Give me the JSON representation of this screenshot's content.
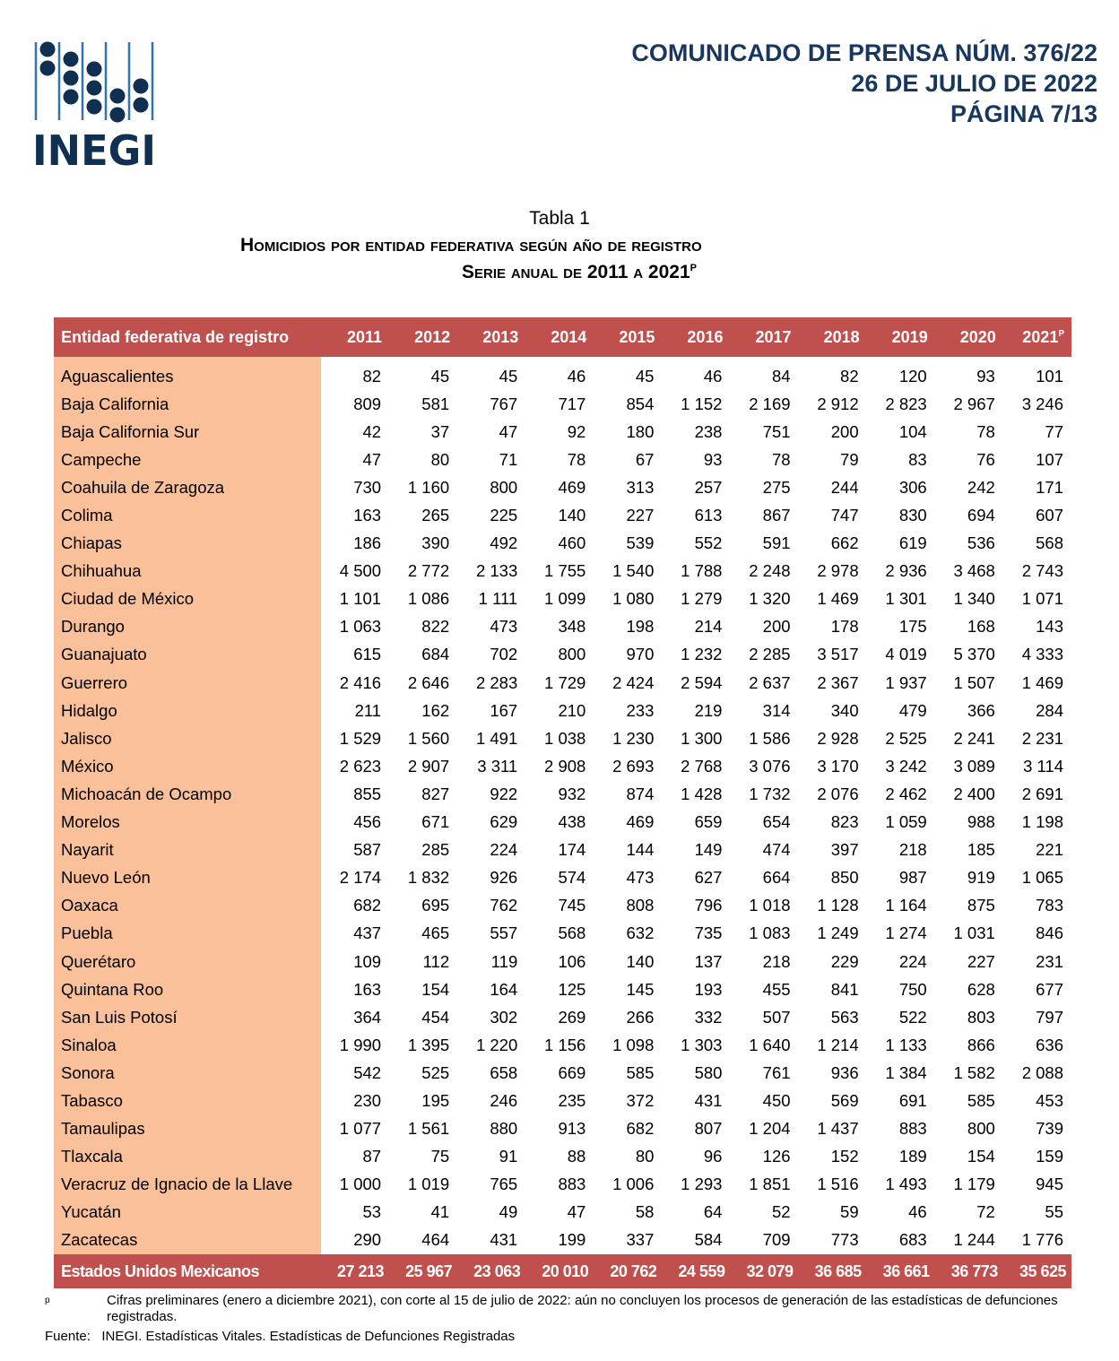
{
  "logo_text": "INEGI",
  "press": {
    "line1": "COMUNICADO DE PRENSA NÚM. 376/22",
    "line2": "26 DE JULIO DE 2022",
    "line3": "PÁGINA 7/13"
  },
  "caption": "Tabla 1",
  "title": "Homicidios por entidad federativa según año de registro",
  "subtitle": "Serie anual de 2011 a 2021",
  "subtitle_mark": "P",
  "table": {
    "header_name": "Entidad federativa de registro",
    "years": [
      "2011",
      "2012",
      "2013",
      "2014",
      "2015",
      "2016",
      "2017",
      "2018",
      "2019",
      "2020",
      "2021"
    ],
    "last_year_mark": "P",
    "rows": [
      {
        "name": "Aguascalientes",
        "values": [
          "82",
          "45",
          "45",
          "46",
          "45",
          "46",
          "84",
          "82",
          "120",
          "93",
          "101"
        ]
      },
      {
        "name": "Baja California",
        "values": [
          "809",
          "581",
          "767",
          "717",
          "854",
          "1 152",
          "2 169",
          "2 912",
          "2 823",
          "2 967",
          "3 246"
        ]
      },
      {
        "name": "Baja California Sur",
        "values": [
          "42",
          "37",
          "47",
          "92",
          "180",
          "238",
          "751",
          "200",
          "104",
          "78",
          "77"
        ]
      },
      {
        "name": "Campeche",
        "values": [
          "47",
          "80",
          "71",
          "78",
          "67",
          "93",
          "78",
          "79",
          "83",
          "76",
          "107"
        ]
      },
      {
        "name": "Coahuila de Zaragoza",
        "values": [
          "730",
          "1 160",
          "800",
          "469",
          "313",
          "257",
          "275",
          "244",
          "306",
          "242",
          "171"
        ]
      },
      {
        "name": "Colima",
        "values": [
          "163",
          "265",
          "225",
          "140",
          "227",
          "613",
          "867",
          "747",
          "830",
          "694",
          "607"
        ]
      },
      {
        "name": "Chiapas",
        "values": [
          "186",
          "390",
          "492",
          "460",
          "539",
          "552",
          "591",
          "662",
          "619",
          "536",
          "568"
        ]
      },
      {
        "name": "Chihuahua",
        "values": [
          "4 500",
          "2 772",
          "2 133",
          "1 755",
          "1 540",
          "1 788",
          "2 248",
          "2 978",
          "2 936",
          "3 468",
          "2 743"
        ]
      },
      {
        "name": "Ciudad de México",
        "values": [
          "1 101",
          "1 086",
          "1 111",
          "1 099",
          "1 080",
          "1 279",
          "1 320",
          "1 469",
          "1 301",
          "1 340",
          "1 071"
        ]
      },
      {
        "name": "Durango",
        "values": [
          "1 063",
          "822",
          "473",
          "348",
          "198",
          "214",
          "200",
          "178",
          "175",
          "168",
          "143"
        ]
      },
      {
        "name": "Guanajuato",
        "values": [
          "615",
          "684",
          "702",
          "800",
          "970",
          "1 232",
          "2 285",
          "3 517",
          "4 019",
          "5 370",
          "4 333"
        ]
      },
      {
        "name": "Guerrero",
        "values": [
          "2 416",
          "2 646",
          "2 283",
          "1 729",
          "2 424",
          "2 594",
          "2 637",
          "2 367",
          "1 937",
          "1 507",
          "1 469"
        ]
      },
      {
        "name": "Hidalgo",
        "values": [
          "211",
          "162",
          "167",
          "210",
          "233",
          "219",
          "314",
          "340",
          "479",
          "366",
          "284"
        ]
      },
      {
        "name": "Jalisco",
        "values": [
          "1 529",
          "1 560",
          "1 491",
          "1 038",
          "1 230",
          "1 300",
          "1 586",
          "2 928",
          "2 525",
          "2 241",
          "2 231"
        ]
      },
      {
        "name": "México",
        "values": [
          "2 623",
          "2 907",
          "3 311",
          "2 908",
          "2 693",
          "2 768",
          "3 076",
          "3 170",
          "3 242",
          "3 089",
          "3 114"
        ]
      },
      {
        "name": "Michoacán de Ocampo",
        "values": [
          "855",
          "827",
          "922",
          "932",
          "874",
          "1 428",
          "1 732",
          "2 076",
          "2 462",
          "2 400",
          "2 691"
        ]
      },
      {
        "name": "Morelos",
        "values": [
          "456",
          "671",
          "629",
          "438",
          "469",
          "659",
          "654",
          "823",
          "1 059",
          "988",
          "1 198"
        ]
      },
      {
        "name": "Nayarit",
        "values": [
          "587",
          "285",
          "224",
          "174",
          "144",
          "149",
          "474",
          "397",
          "218",
          "185",
          "221"
        ]
      },
      {
        "name": "Nuevo León",
        "values": [
          "2 174",
          "1 832",
          "926",
          "574",
          "473",
          "627",
          "664",
          "850",
          "987",
          "919",
          "1 065"
        ]
      },
      {
        "name": "Oaxaca",
        "values": [
          "682",
          "695",
          "762",
          "745",
          "808",
          "796",
          "1 018",
          "1 128",
          "1 164",
          "875",
          "783"
        ]
      },
      {
        "name": "Puebla",
        "values": [
          "437",
          "465",
          "557",
          "568",
          "632",
          "735",
          "1 083",
          "1 249",
          "1 274",
          "1 031",
          "846"
        ]
      },
      {
        "name": "Querétaro",
        "values": [
          "109",
          "112",
          "119",
          "106",
          "140",
          "137",
          "218",
          "229",
          "224",
          "227",
          "231"
        ]
      },
      {
        "name": "Quintana Roo",
        "values": [
          "163",
          "154",
          "164",
          "125",
          "145",
          "193",
          "455",
          "841",
          "750",
          "628",
          "677"
        ]
      },
      {
        "name": "San Luis Potosí",
        "values": [
          "364",
          "454",
          "302",
          "269",
          "266",
          "332",
          "507",
          "563",
          "522",
          "803",
          "797"
        ]
      },
      {
        "name": "Sinaloa",
        "values": [
          "1 990",
          "1 395",
          "1 220",
          "1 156",
          "1 098",
          "1 303",
          "1 640",
          "1 214",
          "1 133",
          "866",
          "636"
        ]
      },
      {
        "name": "Sonora",
        "values": [
          "542",
          "525",
          "658",
          "669",
          "585",
          "580",
          "761",
          "936",
          "1 384",
          "1 582",
          "2 088"
        ]
      },
      {
        "name": "Tabasco",
        "values": [
          "230",
          "195",
          "246",
          "235",
          "372",
          "431",
          "450",
          "569",
          "691",
          "585",
          "453"
        ]
      },
      {
        "name": "Tamaulipas",
        "values": [
          "1 077",
          "1 561",
          "880",
          "913",
          "682",
          "807",
          "1 204",
          "1 437",
          "883",
          "800",
          "739"
        ]
      },
      {
        "name": "Tlaxcala",
        "values": [
          "87",
          "75",
          "91",
          "88",
          "80",
          "96",
          "126",
          "152",
          "189",
          "154",
          "159"
        ]
      },
      {
        "name": "Veracruz de Ignacio de la Llave",
        "values": [
          "1 000",
          "1 019",
          "765",
          "883",
          "1 006",
          "1 293",
          "1 851",
          "1 516",
          "1 493",
          "1 179",
          "945"
        ]
      },
      {
        "name": "Yucatán",
        "values": [
          "53",
          "41",
          "49",
          "47",
          "58",
          "64",
          "52",
          "59",
          "46",
          "72",
          "55"
        ]
      },
      {
        "name": "Zacatecas",
        "values": [
          "290",
          "464",
          "431",
          "199",
          "337",
          "584",
          "709",
          "773",
          "683",
          "1 244",
          "1 776"
        ]
      }
    ],
    "total": {
      "name": "Estados Unidos Mexicanos",
      "values": [
        "27 213",
        "25 967",
        "23 063",
        "20 010",
        "20 762",
        "24 559",
        "32 079",
        "36 685",
        "36 661",
        "36 773",
        "35 625"
      ]
    }
  },
  "footnote": {
    "mark": "p",
    "text": "Cifras preliminares (enero a diciembre 2021), con corte al 15 de julio de 2022: aún no concluyen los procesos de generación de las estadísticas de defunciones registradas."
  },
  "source": "Fuente:   INEGI. Estadísticas Vitales. Estadísticas de Defunciones Registradas",
  "colors": {
    "header": "#c0504d",
    "name_column": "#f9c09a",
    "brand": "#17375e"
  }
}
